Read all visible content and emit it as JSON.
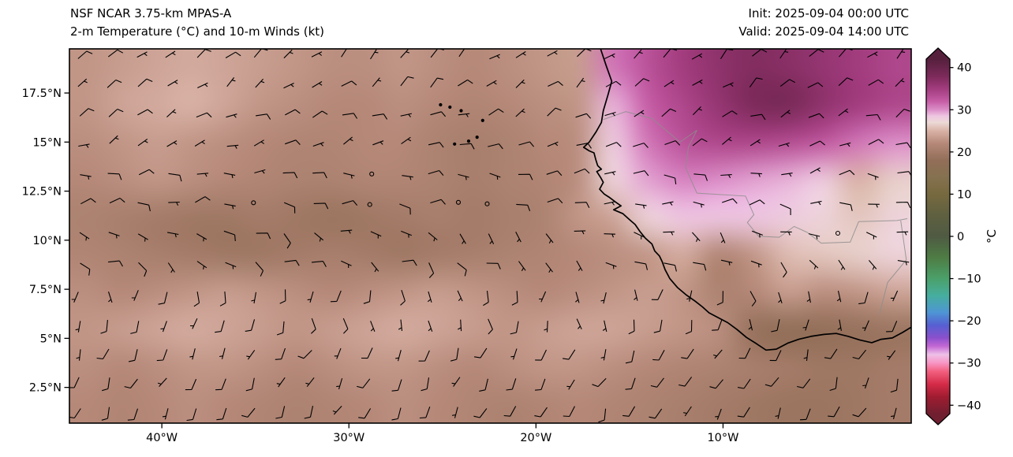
{
  "header": {
    "title_line1": "NSF NCAR 3.75-km MPAS-A",
    "title_line2": "2-m Temperature (°C) and 10-m Winds (kt)",
    "init_label": "Init: 2025-09-04 00:00 UTC",
    "valid_label": "Valid: 2025-09-04 14:00 UTC"
  },
  "chart_data": {
    "type": "heatmap",
    "model": "NSF NCAR 3.75-km MPAS-A",
    "title": "2-m Temperature (°C) and 10-m Winds (kt)",
    "init_time": "2025-09-04 00:00 UTC",
    "valid_time": "2025-09-04 14:00 UTC",
    "units": "°C",
    "extent": {
      "lon_min": -44.94,
      "lon_max": 0.06,
      "lat_min": 0.68,
      "lat_max": 19.75
    },
    "xticks": [
      {
        "lon": -40,
        "label": "40°W"
      },
      {
        "lon": -30,
        "label": "30°W"
      },
      {
        "lon": -20,
        "label": "20°W"
      },
      {
        "lon": -10,
        "label": "10°W"
      }
    ],
    "yticks": [
      {
        "lat": 17.5,
        "label": "17.5°N"
      },
      {
        "lat": 15,
        "label": "15°N"
      },
      {
        "lat": 12.5,
        "label": "12.5°N"
      },
      {
        "lat": 10,
        "label": "10°N"
      },
      {
        "lat": 7.5,
        "label": "7.5°N"
      },
      {
        "lat": 5,
        "label": "5°N"
      },
      {
        "lat": 2.5,
        "label": "2.5°N"
      }
    ],
    "colorbar": {
      "label": "°C",
      "vmin": -42,
      "vmax": 42,
      "ticks": [
        {
          "v": 40,
          "label": "40"
        },
        {
          "v": 30,
          "label": "30"
        },
        {
          "v": 20,
          "label": "20"
        },
        {
          "v": 10,
          "label": "10"
        },
        {
          "v": 0,
          "label": "0"
        },
        {
          "v": -10,
          "label": "−10"
        },
        {
          "v": -20,
          "label": "−20"
        },
        {
          "v": -30,
          "label": "−30"
        },
        {
          "v": -40,
          "label": "−40"
        }
      ],
      "stops": [
        [
          -42,
          "#701f30"
        ],
        [
          -38,
          "#a01c30"
        ],
        [
          -35,
          "#d42b48"
        ],
        [
          -32,
          "#f25f7e"
        ],
        [
          -30,
          "#f795c4"
        ],
        [
          -28,
          "#eec0e8"
        ],
        [
          -26,
          "#c267d4"
        ],
        [
          -24,
          "#8a50cc"
        ],
        [
          -21,
          "#5560d2"
        ],
        [
          -18,
          "#4e96d4"
        ],
        [
          -14,
          "#46ae9e"
        ],
        [
          -10,
          "#4ba06a"
        ],
        [
          -5,
          "#4e7c44"
        ],
        [
          0,
          "#4f5a43"
        ],
        [
          5,
          "#5f6040"
        ],
        [
          10,
          "#77693f"
        ],
        [
          14,
          "#85714f"
        ],
        [
          18,
          "#926e58"
        ],
        [
          22,
          "#b58878"
        ],
        [
          25,
          "#d9b2a6"
        ],
        [
          27,
          "#ecd9d6"
        ],
        [
          28.5,
          "#eec6e2"
        ],
        [
          30,
          "#dc8ec8"
        ],
        [
          32,
          "#c65da6"
        ],
        [
          35,
          "#a23c7e"
        ],
        [
          38,
          "#7c2a5a"
        ],
        [
          42,
          "#55203c"
        ]
      ]
    },
    "temperature_grid": {
      "note": "approximate 2-m temperature (°C) on a uniform grid spanning the map extent, rows north to south",
      "cols": 24,
      "rows": 10,
      "values": [
        [
          23,
          23.5,
          24,
          24.5,
          24,
          23.5,
          23,
          22.5,
          22.5,
          23,
          22.5,
          22,
          22.5,
          23,
          23.5,
          31,
          33,
          35,
          36.5,
          37.5,
          37,
          36,
          35,
          34
        ],
        [
          23,
          24,
          24.5,
          25,
          24,
          23,
          22.5,
          22,
          22,
          22.5,
          22,
          21.5,
          22,
          22.5,
          23,
          29,
          32,
          34,
          36,
          38,
          38.5,
          36.5,
          35,
          34
        ],
        [
          22.5,
          23,
          23.5,
          23,
          22.5,
          22,
          21.5,
          21.5,
          22,
          22,
          21,
          20.5,
          21,
          22,
          22.5,
          28,
          31,
          33,
          34,
          34,
          33.5,
          32.5,
          31,
          30
        ],
        [
          22,
          22.5,
          23,
          22.5,
          22,
          21.5,
          21,
          21,
          21.5,
          21.5,
          21,
          20.5,
          21,
          21.5,
          22.5,
          27.5,
          29.5,
          30.5,
          30,
          29.5,
          29,
          28,
          25,
          26.5
        ],
        [
          21,
          20.5,
          20,
          19.5,
          19.5,
          20,
          19.5,
          19,
          19.5,
          20,
          20.5,
          20,
          20.5,
          21,
          23,
          24,
          27.5,
          28.5,
          28.5,
          28.5,
          28,
          27.5,
          26,
          27.5
        ],
        [
          21.5,
          21,
          20.5,
          20,
          19.5,
          19.5,
          20,
          20.5,
          20,
          19.5,
          20,
          20.5,
          21,
          21.5,
          22,
          22.5,
          23,
          24.5,
          21.5,
          23,
          25.5,
          26,
          26.5,
          27.5
        ],
        [
          22.5,
          22,
          22.5,
          23,
          23.5,
          23,
          22.5,
          22,
          22.5,
          23,
          23.5,
          23,
          22.5,
          22,
          22.5,
          23,
          23.5,
          23,
          21,
          22,
          23.5,
          22.5,
          23,
          24
        ],
        [
          23,
          23.5,
          24,
          24.5,
          24,
          23.5,
          23,
          23.5,
          24,
          24.5,
          24,
          23.5,
          23,
          23.5,
          24,
          24,
          23.5,
          23,
          22.5,
          18.5,
          17.5,
          18,
          18.5,
          19
        ],
        [
          22.5,
          22,
          22.5,
          23,
          23,
          22.5,
          22,
          22.5,
          23,
          23,
          22.5,
          22,
          22.5,
          23,
          23,
          22.5,
          22,
          21.5,
          21,
          20.5,
          20,
          19.5,
          19.5,
          20
        ],
        [
          22,
          21.5,
          22,
          22.5,
          22,
          21.5,
          21,
          21.5,
          22,
          22.5,
          22,
          21.5,
          21,
          21.5,
          22,
          21.5,
          21,
          20.5,
          20,
          19.5,
          19,
          19,
          19.5,
          20
        ]
      ]
    },
    "wind": {
      "units": "kt",
      "barb_grid": {
        "lon_start": -44.4,
        "lon_step": 1.56,
        "cols": 29,
        "lat_start": 19.3,
        "lat_step": 1.485,
        "rows": 13
      },
      "bands": [
        {
          "lat_min": 16.5,
          "dir_from": 50,
          "dir_jitter": 18,
          "speed": 7,
          "speed_jitter": 3
        },
        {
          "lat_min": 13.5,
          "dir_from": 65,
          "dir_jitter": 22,
          "speed": 8,
          "speed_jitter": 3
        },
        {
          "lat_min": 10.5,
          "dir_from": 88,
          "dir_jitter": 30,
          "speed": 8,
          "speed_jitter": 4
        },
        {
          "lat_min": 8.0,
          "dir_from": 120,
          "dir_jitter": 38,
          "speed": 6,
          "speed_jitter": 3
        },
        {
          "lat_min": 5.5,
          "dir_from": 178,
          "dir_jitter": 28,
          "speed": 7,
          "speed_jitter": 3
        },
        {
          "lat_min": -5,
          "dir_from": 205,
          "dir_jitter": 20,
          "speed": 9,
          "speed_jitter": 3
        }
      ]
    },
    "calm_circles": [
      [
        -34.8,
        11.3
      ],
      [
        -28.6,
        12.6
      ],
      [
        -23.3,
        12.4
      ],
      [
        -3.9,
        9.85
      ]
    ],
    "islands": [
      [
        -25.1,
        16.9
      ],
      [
        -24.6,
        16.78
      ],
      [
        -24.0,
        16.6
      ],
      [
        -22.85,
        16.1
      ],
      [
        -23.15,
        15.25
      ],
      [
        -23.6,
        15.05
      ],
      [
        -24.35,
        14.9
      ]
    ],
    "coastline": [
      [
        -16.6,
        19.9
      ],
      [
        -16.25,
        18.9
      ],
      [
        -15.95,
        18.1
      ],
      [
        -16.15,
        17.4
      ],
      [
        -16.4,
        16.6
      ],
      [
        -16.5,
        16.0
      ],
      [
        -16.8,
        15.5
      ],
      [
        -17.15,
        15.0
      ],
      [
        -17.45,
        14.73
      ],
      [
        -17.15,
        14.55
      ],
      [
        -16.9,
        14.45
      ],
      [
        -16.8,
        14.1
      ],
      [
        -16.7,
        13.8
      ],
      [
        -16.5,
        13.62
      ],
      [
        -16.75,
        13.5
      ],
      [
        -16.55,
        13.2
      ],
      [
        -16.4,
        12.95
      ],
      [
        -16.6,
        12.6
      ],
      [
        -16.35,
        12.35
      ],
      [
        -16.1,
        12.2
      ],
      [
        -15.75,
        11.95
      ],
      [
        -15.45,
        11.75
      ],
      [
        -15.85,
        11.55
      ],
      [
        -15.35,
        11.35
      ],
      [
        -15.0,
        11.05
      ],
      [
        -14.7,
        10.8
      ],
      [
        -14.45,
        10.45
      ],
      [
        -14.15,
        10.1
      ],
      [
        -13.8,
        9.8
      ],
      [
        -13.65,
        9.45
      ],
      [
        -13.4,
        9.2
      ],
      [
        -13.25,
        8.9
      ],
      [
        -13.1,
        8.5
      ],
      [
        -12.85,
        8.05
      ],
      [
        -12.45,
        7.6
      ],
      [
        -11.95,
        7.2
      ],
      [
        -11.5,
        6.9
      ],
      [
        -11.1,
        6.6
      ],
      [
        -10.75,
        6.3
      ],
      [
        -10.25,
        6.05
      ],
      [
        -9.75,
        5.8
      ],
      [
        -9.25,
        5.45
      ],
      [
        -8.75,
        5.05
      ],
      [
        -8.2,
        4.72
      ],
      [
        -7.7,
        4.4
      ],
      [
        -7.15,
        4.45
      ],
      [
        -6.55,
        4.75
      ],
      [
        -5.95,
        4.95
      ],
      [
        -5.3,
        5.1
      ],
      [
        -4.6,
        5.2
      ],
      [
        -3.95,
        5.25
      ],
      [
        -3.3,
        5.1
      ],
      [
        -2.7,
        4.92
      ],
      [
        -2.05,
        4.78
      ],
      [
        -1.55,
        4.95
      ],
      [
        -0.95,
        5.02
      ],
      [
        -0.4,
        5.3
      ],
      [
        0.2,
        5.65
      ]
    ],
    "borders": [
      [
        [
          -16.4,
          16.15
        ],
        [
          -15.2,
          16.55
        ],
        [
          -13.8,
          16.2
        ],
        [
          -12.3,
          15.0
        ],
        [
          -11.4,
          15.6
        ],
        [
          -11.85,
          14.75
        ],
        [
          -12.0,
          13.7
        ],
        [
          -11.4,
          12.4
        ]
      ],
      [
        [
          -11.4,
          12.4
        ],
        [
          -8.8,
          12.25
        ],
        [
          -8.35,
          11.3
        ],
        [
          -8.7,
          10.9
        ],
        [
          -8.1,
          10.2
        ]
      ],
      [
        [
          -8.1,
          10.2
        ],
        [
          -7.0,
          10.15
        ],
        [
          -6.2,
          10.7
        ],
        [
          -5.5,
          10.4
        ],
        [
          -4.75,
          9.85
        ],
        [
          -3.2,
          9.9
        ],
        [
          -2.75,
          10.95
        ]
      ],
      [
        [
          -2.75,
          10.95
        ],
        [
          -0.7,
          11.0
        ],
        [
          -0.15,
          11.1
        ]
      ],
      [
        [
          -0.5,
          11.0
        ],
        [
          -0.2,
          9.0
        ],
        [
          -1.2,
          7.85
        ],
        [
          -1.65,
          6.2
        ]
      ]
    ]
  }
}
